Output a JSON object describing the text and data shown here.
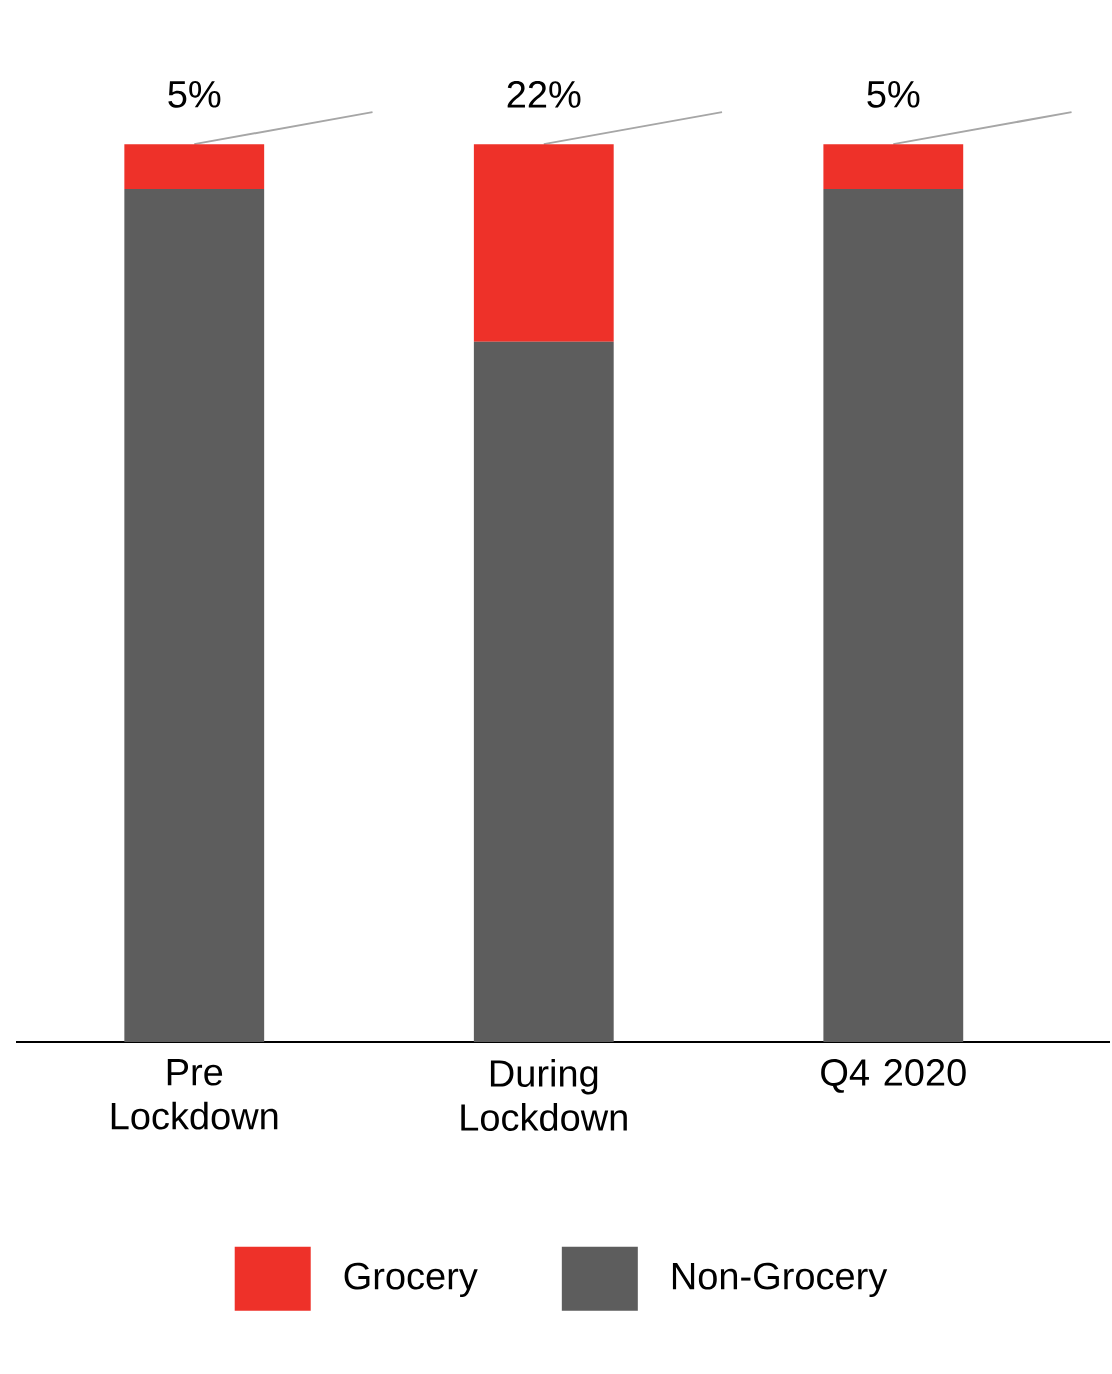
{
  "chart_data": {
    "type": "bar",
    "stacked": true,
    "categories": [
      "Pre Lockdown",
      "During Lockdown",
      "Q4 2020"
    ],
    "series": [
      {
        "name": "Non-Grocery",
        "color": "#5d5d5d",
        "values": [
          95,
          78,
          95
        ]
      },
      {
        "name": "Grocery",
        "color": "#ee3129",
        "values": [
          5,
          22,
          5
        ],
        "value_labels": [
          "5%",
          "22%",
          "5%"
        ]
      }
    ],
    "legend": "bottom"
  }
}
